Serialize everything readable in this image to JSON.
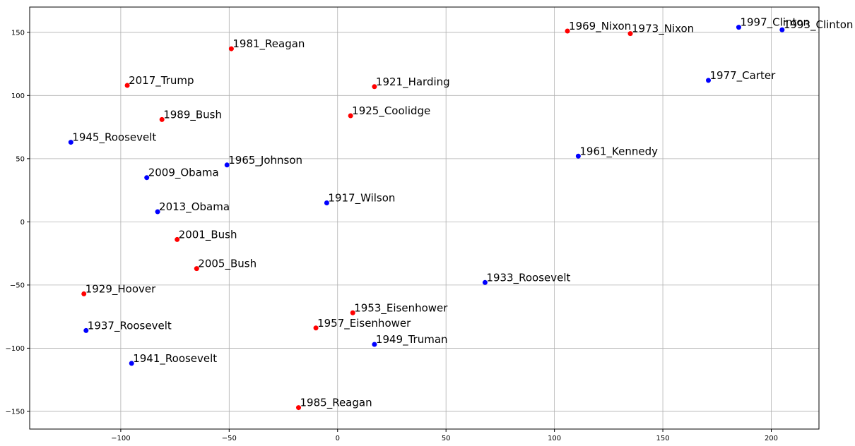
{
  "chart_data": {
    "type": "scatter",
    "title": "",
    "xlabel": "",
    "ylabel": "",
    "xlim": [
      -142,
      222
    ],
    "ylim": [
      -164,
      170
    ],
    "xticks": [
      -100,
      -50,
      0,
      50,
      100,
      150,
      200
    ],
    "yticks": [
      -150,
      -100,
      -50,
      0,
      50,
      100,
      150
    ],
    "grid": true,
    "colors": {
      "red": "#ff0000",
      "blue": "#0000ff"
    },
    "points": [
      {
        "label": "1969_Nixon",
        "x": 106,
        "y": 151,
        "color": "red"
      },
      {
        "label": "1973_Nixon",
        "x": 135,
        "y": 149,
        "color": "red"
      },
      {
        "label": "1997_Clinton",
        "x": 185,
        "y": 154,
        "color": "blue"
      },
      {
        "label": "1993_Clinton",
        "x": 205,
        "y": 152,
        "color": "blue"
      },
      {
        "label": "1981_Reagan",
        "x": -49,
        "y": 137,
        "color": "red"
      },
      {
        "label": "1977_Carter",
        "x": 171,
        "y": 112,
        "color": "blue"
      },
      {
        "label": "2017_Trump",
        "x": -97,
        "y": 108,
        "color": "red"
      },
      {
        "label": "1921_Harding",
        "x": 17,
        "y": 107,
        "color": "red"
      },
      {
        "label": "1925_Coolidge",
        "x": 6,
        "y": 84,
        "color": "red"
      },
      {
        "label": "1989_Bush",
        "x": -81,
        "y": 81,
        "color": "red"
      },
      {
        "label": "1945_Roosevelt",
        "x": -123,
        "y": 63,
        "color": "blue"
      },
      {
        "label": "1961_Kennedy",
        "x": 111,
        "y": 52,
        "color": "blue"
      },
      {
        "label": "1965_Johnson",
        "x": -51,
        "y": 45,
        "color": "blue"
      },
      {
        "label": "2009_Obama",
        "x": -88,
        "y": 35,
        "color": "blue"
      },
      {
        "label": "1917_Wilson",
        "x": -5,
        "y": 15,
        "color": "blue"
      },
      {
        "label": "2013_Obama",
        "x": -83,
        "y": 8,
        "color": "blue"
      },
      {
        "label": "2001_Bush",
        "x": -74,
        "y": -14,
        "color": "red"
      },
      {
        "label": "2005_Bush",
        "x": -65,
        "y": -37,
        "color": "red"
      },
      {
        "label": "1933_Roosevelt",
        "x": 68,
        "y": -48,
        "color": "blue"
      },
      {
        "label": "1929_Hoover",
        "x": -117,
        "y": -57,
        "color": "red"
      },
      {
        "label": "1953_Eisenhower",
        "x": 7,
        "y": -72,
        "color": "red"
      },
      {
        "label": "1957_Eisenhower",
        "x": -10,
        "y": -84,
        "color": "red"
      },
      {
        "label": "1937_Roosevelt",
        "x": -116,
        "y": -86,
        "color": "blue"
      },
      {
        "label": "1949_Truman",
        "x": 17,
        "y": -97,
        "color": "blue"
      },
      {
        "label": "1941_Roosevelt",
        "x": -95,
        "y": -112,
        "color": "blue"
      },
      {
        "label": "1985_Reagan",
        "x": -18,
        "y": -147,
        "color": "red"
      }
    ]
  }
}
